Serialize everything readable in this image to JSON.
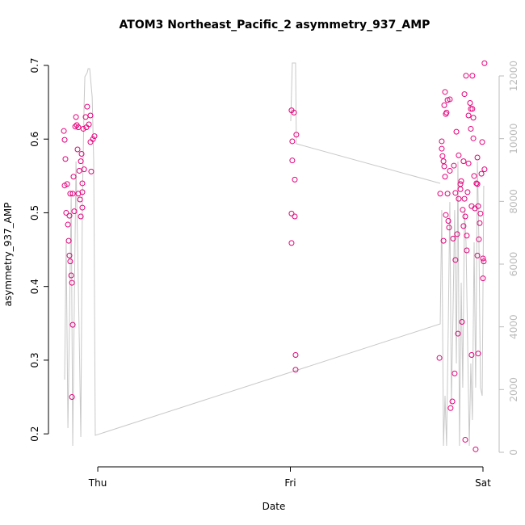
{
  "chart_data": {
    "type": "scatter",
    "title": "ATOM3 Northeast_Pacific_2 asymmetry_937_AMP",
    "xlabel": "Date",
    "ylabel": "asymmetry_937_AMP",
    "xlim": [
      -0.256,
      2.084
    ],
    "xticks": [
      {
        "value": 0,
        "label": "Thu"
      },
      {
        "value": 1,
        "label": "Fri"
      },
      {
        "value": 2,
        "label": "Sat"
      }
    ],
    "ylim": [
      0.164,
      0.723
    ],
    "yticks": [
      0.2,
      0.3,
      0.4,
      0.5,
      0.6,
      0.7
    ],
    "y2lim": [
      -258,
      12876
    ],
    "y2ticks": [
      0,
      2000,
      4000,
      6000,
      8000,
      10000,
      12000
    ],
    "series": [
      {
        "type": "scatter",
        "color": "#e4007c",
        "x": [
          -0.176,
          -0.172,
          -0.168,
          -0.172,
          -0.159,
          -0.164,
          -0.155,
          -0.151,
          -0.147,
          -0.147,
          -0.143,
          -0.138,
          -0.134,
          -0.13,
          -0.134,
          -0.143,
          -0.13,
          -0.126,
          -0.122,
          -0.117,
          -0.113,
          -0.109,
          -0.105,
          -0.101,
          -0.096,
          -0.101,
          -0.092,
          -0.088,
          -0.084,
          -0.08,
          -0.088,
          -0.08,
          -0.08,
          -0.075,
          -0.071,
          -0.063,
          -0.059,
          -0.055,
          -0.046,
          -0.038,
          -0.038,
          -0.034,
          -0.025,
          -0.017,
          1.006,
          1.019,
          1.01,
          1.031,
          1.01,
          1.023,
          1.006,
          1.023,
          1.006,
          1.027,
          1.027,
          1.774,
          1.778,
          1.786,
          1.786,
          1.79,
          1.795,
          1.795,
          1.799,
          1.799,
          1.803,
          1.803,
          1.807,
          1.811,
          1.807,
          1.816,
          1.816,
          1.82,
          1.824,
          1.828,
          1.828,
          1.832,
          1.841,
          1.845,
          1.849,
          1.853,
          1.857,
          1.857,
          1.862,
          1.866,
          1.87,
          1.874,
          1.874,
          1.883,
          1.883,
          1.887,
          1.891,
          1.895,
          1.899,
          1.899,
          1.904,
          1.904,
          1.908,
          1.908,
          1.912,
          1.916,
          1.92,
          1.916,
          1.925,
          1.925,
          1.933,
          1.937,
          1.937,
          1.941,
          1.941,
          1.945,
          1.945,
          1.95,
          1.95,
          1.954,
          1.958,
          1.962,
          1.966,
          1.971,
          1.971,
          1.971,
          1.975,
          1.975,
          1.979,
          1.983,
          1.987,
          1.992,
          1.996,
          2.0,
          2.0,
          2.004,
          2.008,
          2.008
        ],
        "values": [
          0.611,
          0.599,
          0.573,
          0.537,
          0.539,
          0.5,
          0.484,
          0.462,
          0.496,
          0.442,
          0.434,
          0.415,
          0.405,
          0.348,
          0.25,
          0.526,
          0.526,
          0.549,
          0.502,
          0.617,
          0.63,
          0.619,
          0.586,
          0.616,
          0.557,
          0.526,
          0.518,
          0.57,
          0.58,
          0.54,
          0.495,
          0.507,
          0.528,
          0.614,
          0.559,
          0.63,
          0.616,
          0.644,
          0.62,
          0.632,
          0.596,
          0.556,
          0.6,
          0.604,
          0.639,
          0.636,
          0.597,
          0.606,
          0.571,
          0.545,
          0.499,
          0.495,
          0.459,
          0.307,
          0.287,
          0.303,
          0.526,
          0.597,
          0.587,
          0.577,
          0.462,
          0.57,
          0.563,
          0.646,
          0.549,
          0.664,
          0.634,
          0.636,
          0.497,
          0.526,
          0.653,
          0.489,
          0.48,
          0.654,
          0.557,
          0.235,
          0.244,
          0.465,
          0.564,
          0.282,
          0.436,
          0.527,
          0.61,
          0.471,
          0.336,
          0.578,
          0.519,
          0.532,
          0.539,
          0.543,
          0.352,
          0.504,
          0.57,
          0.482,
          0.519,
          0.661,
          0.495,
          0.192,
          0.686,
          0.449,
          0.528,
          0.469,
          0.567,
          0.632,
          0.649,
          0.641,
          0.614,
          0.307,
          0.509,
          0.686,
          0.641,
          0.629,
          0.601,
          0.55,
          0.506,
          0.179,
          0.54,
          0.539,
          0.575,
          0.442,
          0.309,
          0.509,
          0.464,
          0.486,
          0.499,
          0.553,
          0.596,
          0.411,
          0.438,
          0.434,
          0.703,
          0.559
        ]
      },
      {
        "type": "line",
        "axis": "y2",
        "color": "#c8c8c8",
        "x": [
          -0.172,
          -0.164,
          -0.155,
          -0.147,
          -0.138,
          -0.13,
          -0.122,
          -0.113,
          -0.105,
          -0.096,
          -0.088,
          -0.08,
          -0.071,
          -0.067,
          -0.055,
          -0.05,
          -0.042,
          -0.029,
          -0.021,
          -0.013,
          1.778,
          1.786,
          1.795,
          1.803,
          1.811,
          1.82,
          1.828,
          1.836,
          1.845,
          1.853,
          1.862,
          1.87,
          1.878,
          1.887,
          1.895,
          1.904,
          1.912,
          1.92,
          1.929,
          1.937,
          1.945,
          1.954,
          1.962,
          1.971,
          1.979,
          1.987,
          1.996,
          2.004,
          null,
          1.002,
          1.01,
          1.027,
          1.031,
          1.778
        ],
        "values": [
          2318,
          6695,
          773,
          4120,
          8240,
          206,
          4635,
          9270,
          6695,
          3605,
          489,
          7983,
          11073,
          11974,
          12103,
          12231,
          12231,
          11330,
          9270,
          541,
          4094,
          7725,
          206,
          1803,
          206,
          4120,
          7983,
          1545,
          4635,
          7725,
          2833,
          9270,
          206,
          5408,
          2060,
          7725,
          6695,
          3605,
          206,
          2833,
          1030,
          6695,
          2060,
          9270,
          6695,
          2060,
          1803,
          8498,
          null,
          10558,
          12412,
          12412,
          9837,
          8575
        ]
      }
    ]
  }
}
